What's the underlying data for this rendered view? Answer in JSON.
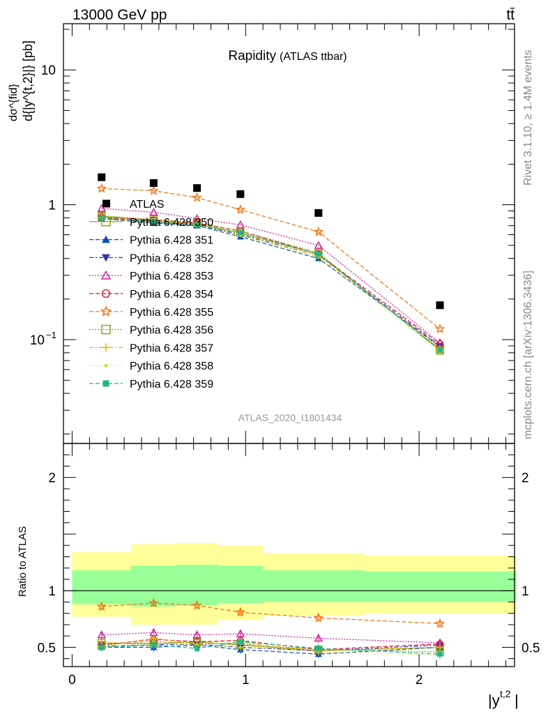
{
  "header": {
    "left": "13000 GeV pp",
    "right": "tt̄"
  },
  "side": {
    "rivet": "Rivet 3.1.10, ≥ 1.4M events",
    "mcplots": "mcplots.cern.ch [arXiv:1306.3436]"
  },
  "chart_data": {
    "type": "line",
    "title": "Rapidity",
    "subtitle": "(ATLAS ttbar)",
    "analysis_id": "ATLAS_2020_I1801434",
    "xlabel": "|y",
    "xlabel_sup": "t,2",
    "xlabel_close": "|",
    "ylabel_main": "d{|y^{t,2}|} [pb]",
    "ylabel_top": "dσ^{fid}",
    "ratio_ylabel": "Ratio to ATLAS",
    "xlim": [
      -0.05,
      2.55
    ],
    "main_ylim": [
      0.017,
      22
    ],
    "main_yscale": "log",
    "main_yticks": [
      {
        "v": 10,
        "label": "10"
      },
      {
        "v": 1,
        "label": "1"
      },
      {
        "v": 0.1,
        "label": "10",
        "sup": "−1"
      }
    ],
    "ratio_ylim": [
      0.33,
      2.3
    ],
    "ratio_yticks": [
      {
        "v": 2,
        "label": "2"
      },
      {
        "v": 1,
        "label": "1"
      },
      {
        "v": 0.5,
        "label": "0.5"
      }
    ],
    "xticks": [
      {
        "v": 0,
        "label": "0"
      },
      {
        "v": 1,
        "label": "1"
      },
      {
        "v": 2,
        "label": "2"
      }
    ],
    "x": [
      0.17,
      0.47,
      0.72,
      0.97,
      1.42,
      2.12
    ],
    "bin_edges": [
      0,
      0.34,
      0.6,
      0.84,
      1.1,
      1.68,
      2.56
    ],
    "data": {
      "name": "ATLAS",
      "color": "#000000",
      "values": [
        1.6,
        1.45,
        1.33,
        1.2,
        0.87,
        0.18
      ]
    },
    "band_yellow": [
      [
        0.77,
        1.34
      ],
      [
        0.7,
        1.41
      ],
      [
        0.7,
        1.42
      ],
      [
        0.74,
        1.4
      ],
      [
        0.78,
        1.33
      ],
      [
        0.8,
        1.31
      ]
    ],
    "band_green": [
      [
        0.88,
        1.18
      ],
      [
        0.86,
        1.22
      ],
      [
        0.87,
        1.23
      ],
      [
        0.89,
        1.22
      ],
      [
        0.9,
        1.18
      ],
      [
        0.9,
        1.17
      ]
    ],
    "series": [
      {
        "name": "Pythia 6.428 350",
        "color": "#999900",
        "marker": "square-open",
        "dash": "solid",
        "values": [
          0.82,
          0.76,
          0.72,
          0.62,
          0.43,
          0.085
        ],
        "ratio": [
          0.54,
          0.53,
          0.55,
          0.52,
          0.47,
          0.5
        ]
      },
      {
        "name": "Pythia 6.428 351",
        "color": "#0b4fbf",
        "marker": "triangle-up",
        "dash": "6,3",
        "values": [
          0.79,
          0.73,
          0.7,
          0.58,
          0.4,
          0.089
        ],
        "ratio": [
          0.5,
          0.5,
          0.52,
          0.48,
          0.44,
          0.5
        ]
      },
      {
        "name": "Pythia 6.428 352",
        "color": "#3333aa",
        "marker": "triangle-down",
        "dash": "6,3,2,3",
        "values": [
          0.8,
          0.74,
          0.71,
          0.6,
          0.42,
          0.09
        ],
        "ratio": [
          0.51,
          0.52,
          0.53,
          0.5,
          0.47,
          0.52
        ]
      },
      {
        "name": "Pythia 6.428 353",
        "color": "#cc1599",
        "marker": "triangle-open",
        "dash": "2,2",
        "values": [
          0.94,
          0.88,
          0.79,
          0.71,
          0.5,
          0.095
        ],
        "ratio": [
          0.61,
          0.63,
          0.61,
          0.62,
          0.58,
          0.54
        ]
      },
      {
        "name": "Pythia 6.428 354",
        "color": "#dd1133",
        "marker": "circle-open",
        "dash": "6,3",
        "values": [
          0.81,
          0.77,
          0.73,
          0.64,
          0.43,
          0.093
        ],
        "ratio": [
          0.52,
          0.57,
          0.55,
          0.56,
          0.48,
          0.53
        ]
      },
      {
        "name": "Pythia 6.428 355",
        "color": "#f07011",
        "marker": "star-open",
        "dash": "6,3",
        "values": [
          1.32,
          1.27,
          1.13,
          0.92,
          0.63,
          0.12
        ],
        "ratio": [
          0.86,
          0.89,
          0.87,
          0.81,
          0.76,
          0.71
        ]
      },
      {
        "name": "Pythia 6.428 356",
        "color": "#8a9a10",
        "marker": "square-open",
        "dash": "2,2",
        "values": [
          0.83,
          0.78,
          0.74,
          0.64,
          0.44,
          0.083
        ],
        "ratio": [
          0.52,
          0.55,
          0.54,
          0.53,
          0.48,
          0.46
        ]
      },
      {
        "name": "Pythia 6.428 357",
        "color": "#e6b800",
        "marker": "cross",
        "dash": "6,3,2,3",
        "values": [
          0.8,
          0.76,
          0.72,
          0.61,
          0.42,
          0.086
        ],
        "ratio": [
          0.51,
          0.58,
          0.53,
          0.54,
          0.47,
          0.5
        ]
      },
      {
        "name": "Pythia 6.428 358",
        "color": "#c8d400",
        "marker": "dot",
        "dash": "1,3",
        "values": [
          0.78,
          0.74,
          0.7,
          0.59,
          0.41,
          0.082
        ],
        "ratio": [
          0.5,
          0.54,
          0.52,
          0.5,
          0.46,
          0.43
        ]
      },
      {
        "name": "Pythia 6.428 359",
        "color": "#20b88a",
        "marker": "square-filled",
        "dash": "6,3",
        "values": [
          0.8,
          0.75,
          0.71,
          0.62,
          0.43,
          0.084
        ],
        "ratio": [
          0.5,
          0.52,
          0.49,
          0.55,
          0.49,
          0.44
        ]
      }
    ]
  }
}
